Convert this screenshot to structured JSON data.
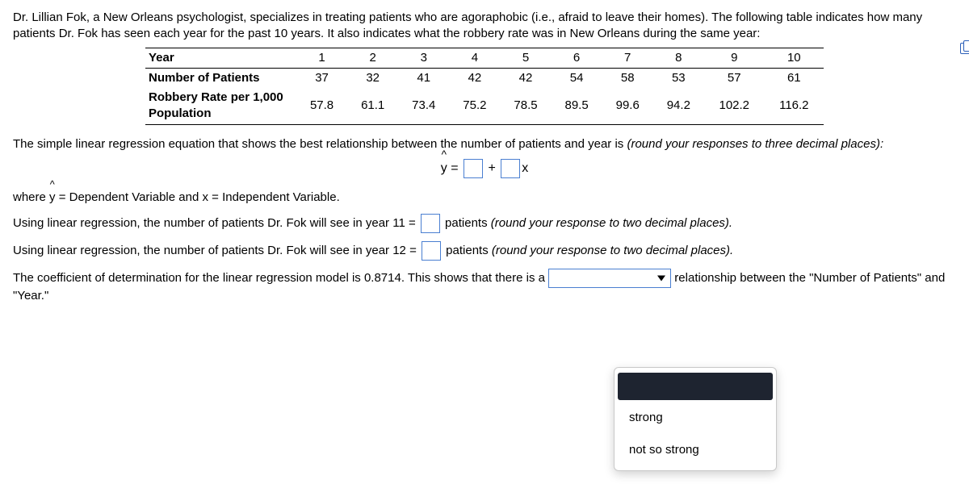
{
  "intro": "Dr. Lillian Fok, a New Orleans psychologist, specializes in treating patients who are agoraphobic (i.e., afraid to leave their homes). The following table indicates how many patients Dr. Fok has seen each year for the past 10 years. It also indicates what the robbery rate was in New Orleans during the same year:",
  "table": {
    "row1_label": "Year",
    "row2_label": "Number of Patients",
    "row3_label": "Robbery Rate per 1,000 Population",
    "years": [
      "1",
      "2",
      "3",
      "4",
      "5",
      "6",
      "7",
      "8",
      "9",
      "10"
    ],
    "patients": [
      "37",
      "32",
      "41",
      "42",
      "42",
      "54",
      "58",
      "53",
      "57",
      "61"
    ],
    "robbery": [
      "57.8",
      "61.1",
      "73.4",
      "75.2",
      "78.5",
      "89.5",
      "99.6",
      "94.2",
      "102.2",
      "116.2"
    ]
  },
  "q1": {
    "lead": "The simple linear regression equation that shows the best relationship between the number of patients and year is ",
    "hint": "(round your responses to three decimal places):",
    "y": "y",
    "eq_equals": " = ",
    "eq_plus": " + ",
    "eq_x": "x"
  },
  "where": "where y = Dependent Variable and x = Independent Variable.",
  "hat_glyph": "^",
  "q2a": {
    "lead": "Using linear regression, the number of patients Dr. Fok will see in year 11 = ",
    "tail": " patients ",
    "hint": "(round your response to two decimal places)."
  },
  "q2b": {
    "lead": "Using linear regression, the number of patients Dr. Fok will see in year 12 = ",
    "tail": " patients ",
    "hint": "(round your response to two decimal places)."
  },
  "q3": {
    "lead": "The coefficient of determination for the linear regression model is 0.8714.  This shows that there is a ",
    "tail": " relationship between the \"Number of Patients\" and \"Year.\""
  },
  "dropdown": {
    "options": [
      "",
      "strong",
      "not so strong"
    ]
  },
  "colors": {
    "input_border": "#4a7fd1",
    "text": "#000000",
    "dropdown_selected_bg": "#1e2430"
  }
}
